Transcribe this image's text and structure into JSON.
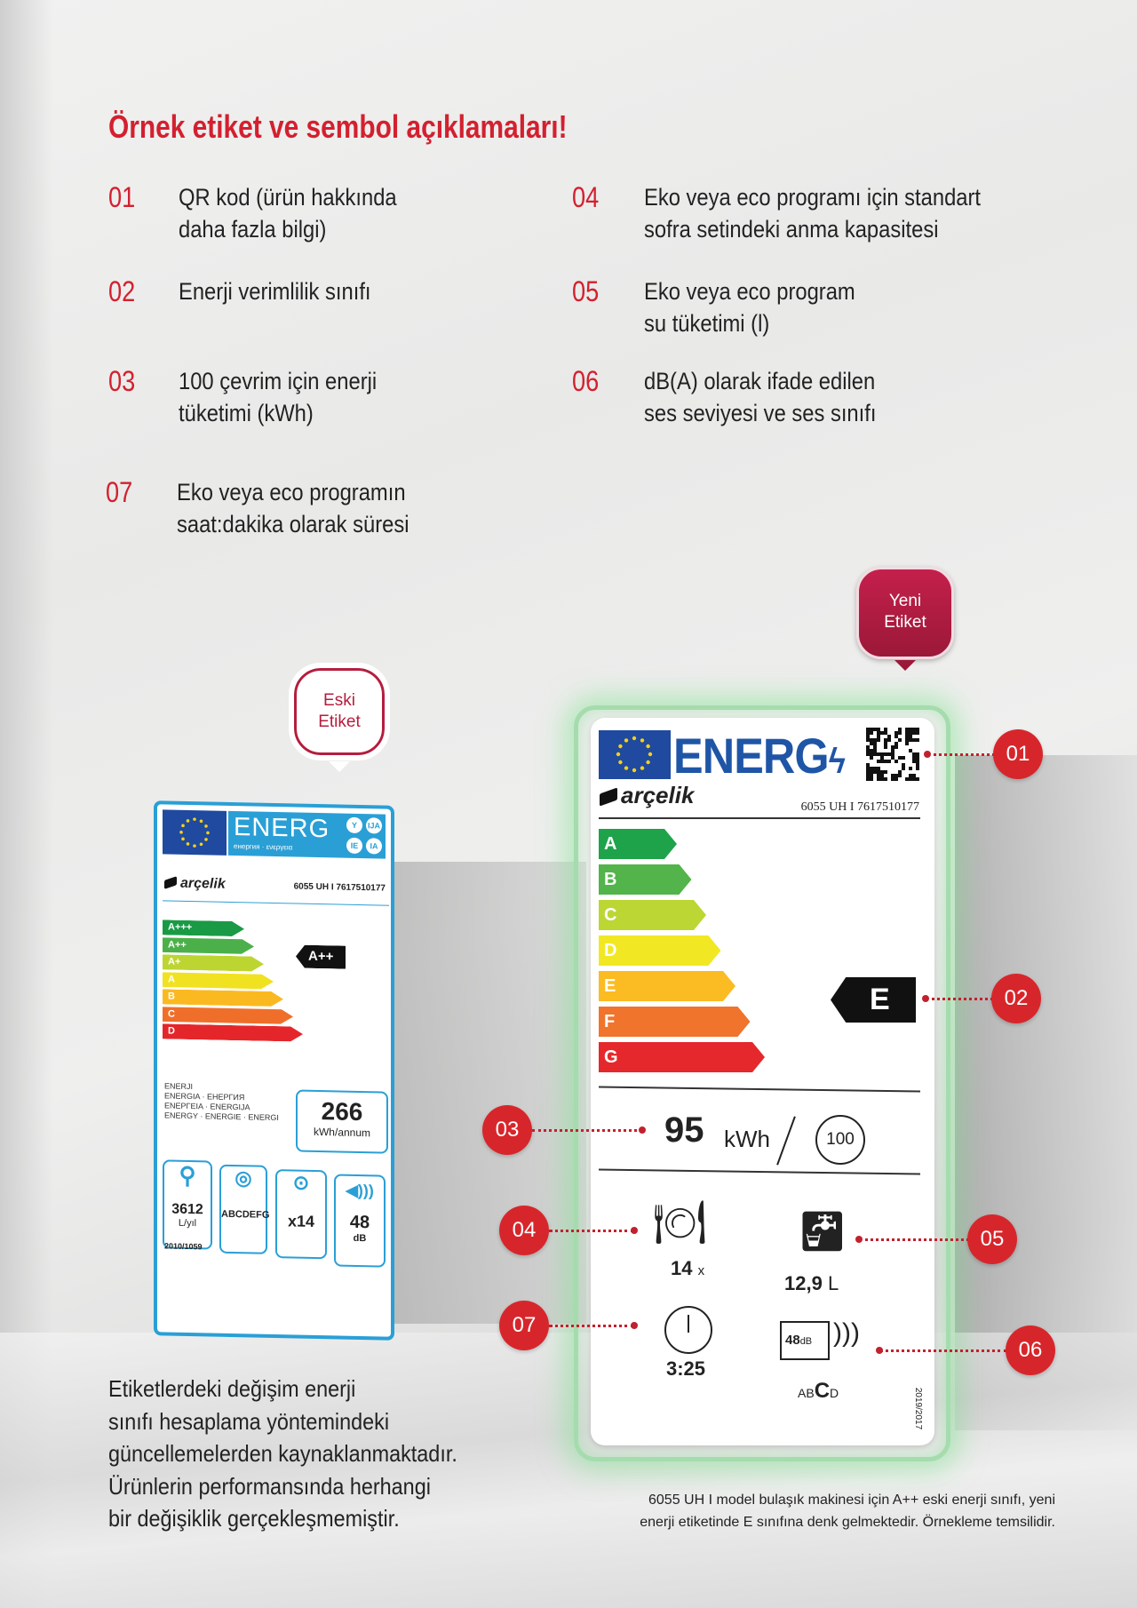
{
  "title": "Örnek etiket ve sembol açıklamaları!",
  "items": [
    {
      "num": "01",
      "lines": [
        "QR kod (ürün hakkında",
        "daha fazla bilgi)"
      ]
    },
    {
      "num": "02",
      "lines": [
        "Enerji verimlilik sınıfı"
      ]
    },
    {
      "num": "03",
      "lines": [
        "100 çevrim için enerji",
        "tüketimi (kWh)"
      ]
    },
    {
      "num": "04",
      "lines": [
        "Eko veya eco programı için standart",
        "sofra setindeki anma kapasitesi"
      ]
    },
    {
      "num": "05",
      "lines": [
        "Eko veya eco program",
        "su tüketimi (l)"
      ]
    },
    {
      "num": "06",
      "lines": [
        "dB(A) olarak ifade edilen",
        "ses seviyesi ve ses sınıfı"
      ]
    },
    {
      "num": "07",
      "lines": [
        "Eko veya eco programın",
        "saat:dakika olarak süresi"
      ]
    }
  ],
  "bubbles": {
    "new": [
      "Yeni",
      "Etiket"
    ],
    "old": [
      "Eski",
      "Etiket"
    ]
  },
  "old_label": {
    "energ": "ENERG",
    "subtitle": "енергия · ενεργεια",
    "circles": [
      "Y",
      "IJA",
      "IE",
      "IA"
    ],
    "brand": "arçelik",
    "model": "6055 UH I 7617510177",
    "scale": [
      {
        "label": "A+++",
        "color": "#1a9a45"
      },
      {
        "label": "A++",
        "color": "#4cb04a"
      },
      {
        "label": "A+",
        "color": "#bdd531"
      },
      {
        "label": "A",
        "color": "#f0e221"
      },
      {
        "label": "B",
        "color": "#fbb921"
      },
      {
        "label": "C",
        "color": "#ef6f2a"
      },
      {
        "label": "D",
        "color": "#e4262a"
      }
    ],
    "rating": "A++",
    "multilang": [
      "ENERJI",
      "ENERGIA · ЕНЕРГИЯ",
      "ΕΝΕΡΓΕΙΑ · ENERGIJA",
      "ENERGY · ENERGIE · ENERGI"
    ],
    "consumption": "266",
    "consumption_unit": "kWh/annum",
    "water": "3612",
    "water_unit": "L/yıl",
    "drying": "ABCDEFG",
    "settings": "x14",
    "noise": "48",
    "noise_unit": "dB",
    "regulation": "2010/1059"
  },
  "new_label": {
    "energ": "ENERG",
    "brand": "arçelik",
    "model": "6055 UH I 7617510177",
    "scale": [
      {
        "label": "A",
        "color": "#1ea34a"
      },
      {
        "label": "B",
        "color": "#52b44a"
      },
      {
        "label": "C",
        "color": "#bcd634"
      },
      {
        "label": "D",
        "color": "#f1e823"
      },
      {
        "label": "E",
        "color": "#fbbb22"
      },
      {
        "label": "F",
        "color": "#f0742b"
      },
      {
        "label": "G",
        "color": "#e5282b"
      }
    ],
    "rating": "E",
    "energy_value": "95",
    "energy_unit": "kWh",
    "cycles": "100",
    "place_settings": "14",
    "place_unit": "x",
    "water": "12,9",
    "water_unit": "L",
    "duration": "3:25",
    "noise": "48",
    "noise_unit": "dB",
    "noise_class_pre": "AB",
    "noise_class": "C",
    "noise_class_post": "D",
    "regulation": "2019/2017"
  },
  "callouts": [
    "01",
    "02",
    "03",
    "04",
    "05",
    "06",
    "07"
  ],
  "paragraph": [
    "Etiketlerdeki değişim enerji",
    "sınıfı hesaplama yöntemindeki",
    "güncellemelerden kaynaklanmaktadır.",
    "Ürünlerin performansında herhangi",
    "bir değişiklik gerçekleşmemiştir."
  ],
  "footnote": [
    "6055 UH I model bulaşık makinesi  için A++ eski enerji sınıfı, yeni",
    "enerji etiketinde E sınıfına denk gelmektedir. Örnekleme temsilidir."
  ],
  "colors": {
    "accent": "#d3202f",
    "callout": "#d7262b",
    "old_label_border": "#2a9fd6",
    "eu_blue": "#1f4aa0",
    "glow": "#a5dcae"
  }
}
